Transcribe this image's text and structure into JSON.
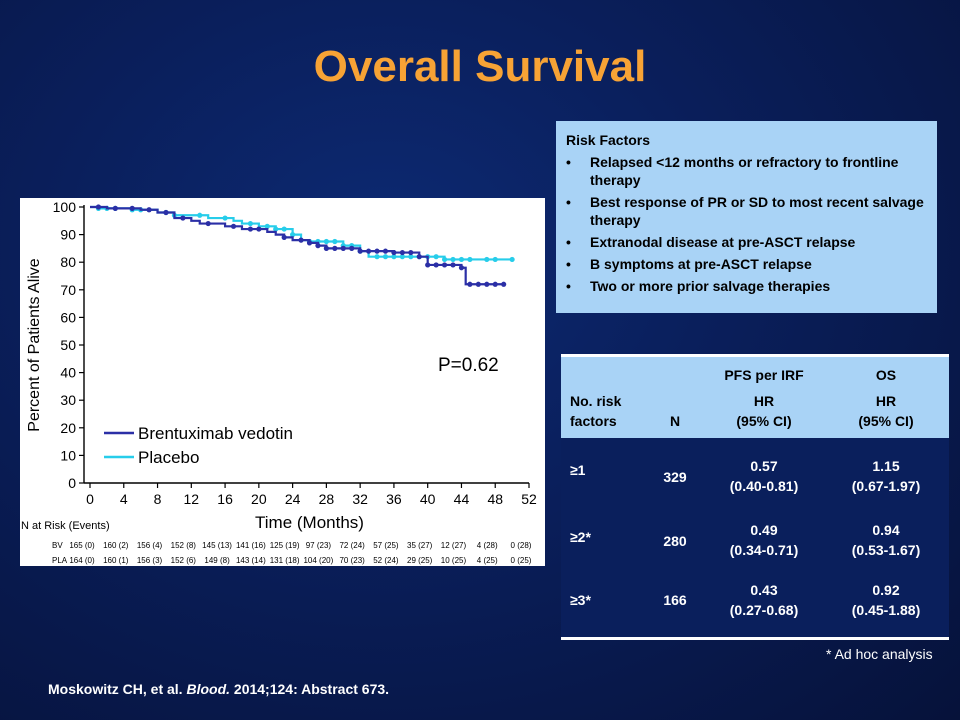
{
  "slide": {
    "title": "Overall Survival",
    "footnote": "* Ad hoc analysis",
    "citation_authors": "Moskowitz CH, et al.",
    "citation_journal": "Blood.",
    "citation_rest": "2014;124: Abstract 673."
  },
  "risk_factors": {
    "heading": "Risk Factors",
    "bullet": "•",
    "items": [
      "Relapsed  <12 months  or refractory  to frontline  therapy",
      "Best response  of PR or SD to most recent salvage  therapy",
      "Extranodal  disease  at pre-ASCT relapse",
      "B symptoms  at pre-ASCT  relapse",
      "Two or more prior salvage  therapies"
    ]
  },
  "table": {
    "header": {
      "col1_line1": "No. risk",
      "col1_line2": "factors",
      "col2": "N",
      "pfs_title": "PFS per IRF",
      "pfs_hr": "HR",
      "pfs_ci": "(95% CI)",
      "os_title": "OS",
      "os_hr": "HR",
      "os_ci": "(95% CI)"
    },
    "rows": [
      {
        "factors": "≥1",
        "n": "329",
        "pfs_hr": "0.57",
        "pfs_ci": "(0.40-0.81)",
        "os_hr": "1.15",
        "os_ci": "(0.67-1.97)"
      },
      {
        "factors": "≥2*",
        "n": "280",
        "pfs_hr": "0.49",
        "pfs_ci": "(0.34-0.71)",
        "os_hr": "0.94",
        "os_ci": "(0.53-1.67)"
      },
      {
        "factors": "≥3*",
        "n": "166",
        "pfs_hr": "0.43",
        "pfs_ci": "(0.27-0.68)",
        "os_hr": "0.92",
        "os_ci": "(0.45-1.88)"
      }
    ]
  },
  "chart_data": {
    "type": "line",
    "title": "",
    "xlabel": "Time (Months)",
    "ylabel": "Percent of Patients  Alive",
    "xlim": [
      0,
      52
    ],
    "ylim": [
      0,
      100
    ],
    "x_ticks": [
      0,
      4,
      8,
      12,
      16,
      20,
      24,
      28,
      32,
      36,
      40,
      44,
      48,
      52
    ],
    "y_ticks": [
      0,
      10,
      20,
      30,
      40,
      50,
      60,
      70,
      80,
      90,
      100
    ],
    "grid": false,
    "legend_position": "bottom-left",
    "annotation": "P=0.62",
    "series": [
      {
        "name": "Brentuximab vedotin",
        "color": "#2b2fa6",
        "steps": [
          [
            0,
            100
          ],
          [
            2,
            99.5
          ],
          [
            6,
            99
          ],
          [
            8,
            98
          ],
          [
            10,
            96
          ],
          [
            12,
            95
          ],
          [
            13,
            94
          ],
          [
            16,
            93
          ],
          [
            18,
            92
          ],
          [
            21,
            91
          ],
          [
            22,
            90
          ],
          [
            23,
            89
          ],
          [
            24,
            88
          ],
          [
            26,
            87
          ],
          [
            27,
            86
          ],
          [
            28,
            85
          ],
          [
            32,
            84
          ],
          [
            36,
            83.5
          ],
          [
            39,
            82
          ],
          [
            40,
            79
          ],
          [
            44,
            78
          ],
          [
            44.5,
            72
          ],
          [
            49,
            72
          ]
        ],
        "censored_x": [
          1,
          3,
          5,
          7,
          9,
          11,
          14,
          17,
          19,
          20,
          23,
          25,
          26,
          27,
          28,
          29,
          30,
          31,
          32,
          33,
          34,
          35,
          36,
          37,
          38,
          39,
          40,
          41,
          42,
          43,
          44,
          45,
          46,
          47,
          48,
          49
        ]
      },
      {
        "name": "Placebo",
        "color": "#27cdea",
        "steps": [
          [
            0,
            100
          ],
          [
            1,
            99.5
          ],
          [
            5,
            99
          ],
          [
            8,
            98
          ],
          [
            10,
            97
          ],
          [
            14,
            96
          ],
          [
            17,
            95
          ],
          [
            18,
            94
          ],
          [
            20,
            93
          ],
          [
            22,
            92
          ],
          [
            24,
            90
          ],
          [
            25,
            88
          ],
          [
            26,
            87.5
          ],
          [
            30,
            86
          ],
          [
            32,
            84
          ],
          [
            33,
            82
          ],
          [
            42,
            81
          ],
          [
            50,
            81
          ]
        ],
        "censored_x": [
          1,
          2,
          3,
          5,
          6,
          9,
          10,
          13,
          16,
          19,
          21,
          22,
          23,
          24,
          26,
          27,
          28,
          29,
          30,
          31,
          32,
          34,
          35,
          36,
          37,
          38,
          39,
          40,
          41,
          42,
          43,
          44,
          45,
          47,
          48,
          50
        ]
      }
    ],
    "at_risk": {
      "title": "N at Risk (Events)",
      "rows": [
        {
          "label": "BV",
          "values": [
            "165 (0)",
            "160 (2)",
            "156 (4)",
            "152 (8)",
            "145 (13)",
            "141 (16)",
            "125 (19)",
            "97 (23)",
            "72 (24)",
            "57 (25)",
            "35 (27)",
            "12 (27)",
            "4 (28)",
            "0 (28)"
          ]
        },
        {
          "label": "PLA",
          "values": [
            "164 (0)",
            "160 (1)",
            "156 (3)",
            "152 (6)",
            "149 (8)",
            "143 (14)",
            "131 (18)",
            "104 (20)",
            "70 (23)",
            "52 (24)",
            "29 (25)",
            "10 (25)",
            "4 (25)",
            "0 (25)"
          ]
        }
      ]
    }
  }
}
